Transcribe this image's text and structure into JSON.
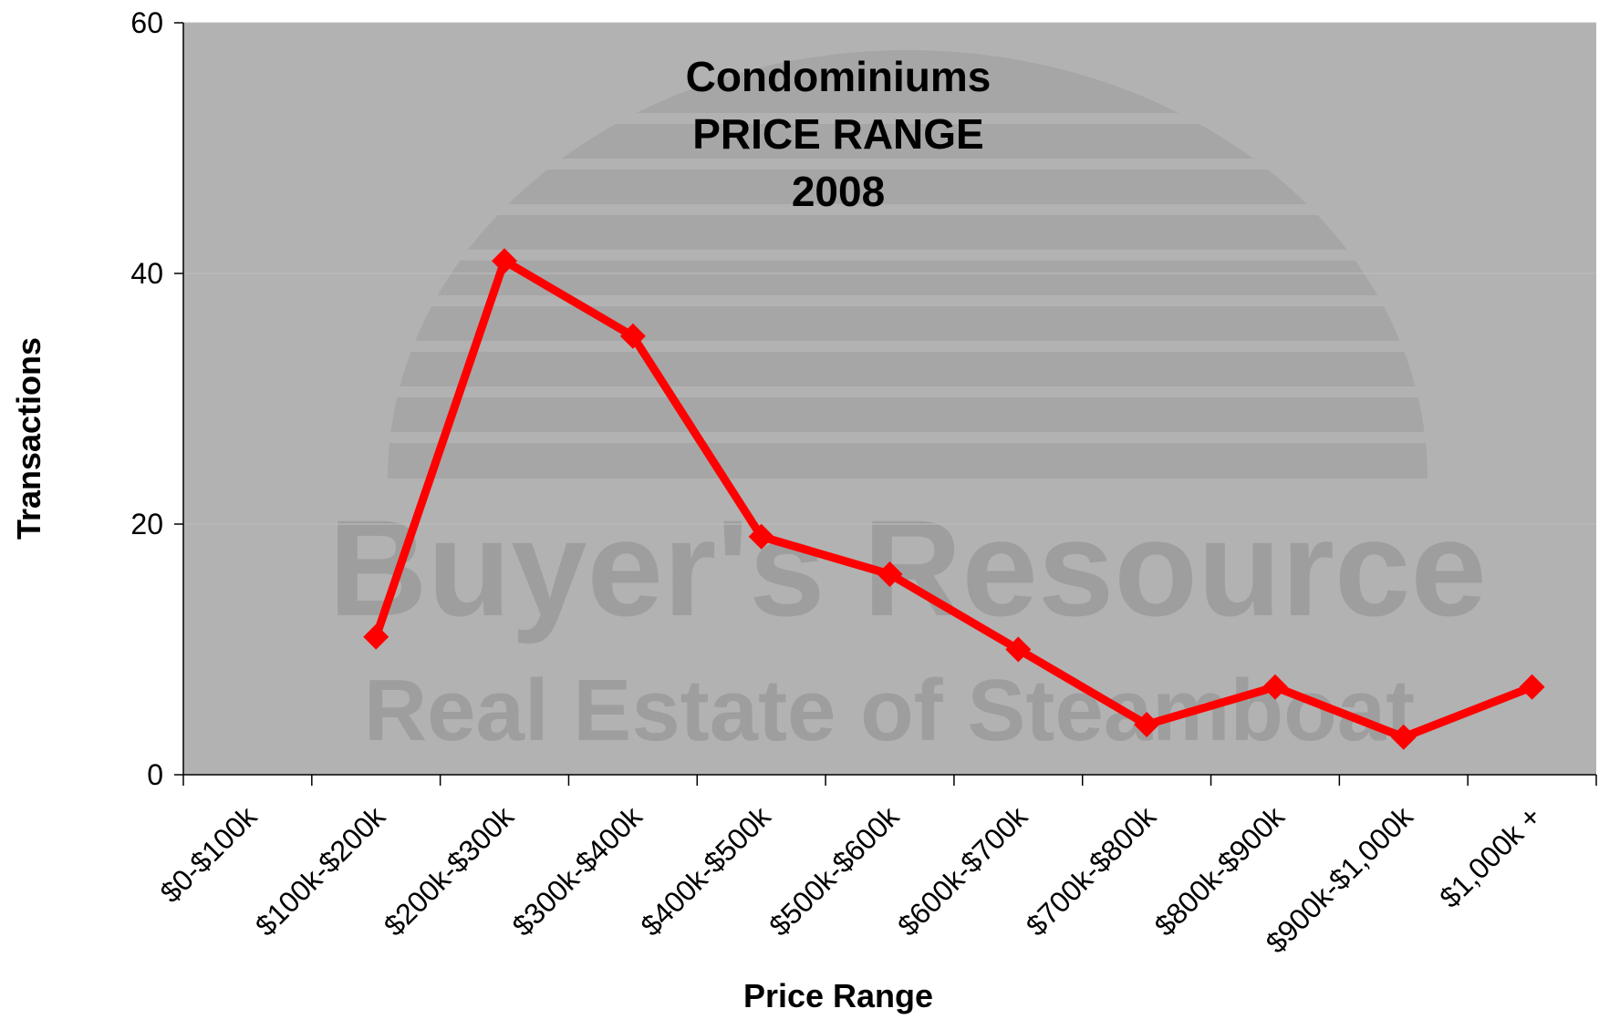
{
  "chart_data": {
    "type": "line",
    "title": [
      "Condominiums",
      "PRICE RANGE",
      "2008"
    ],
    "x_label": "Price Range",
    "y_label": "Transactions",
    "watermark": [
      "Buyer's Resource",
      "Real Estate of Steamboat"
    ],
    "categories": [
      "$0-$100k",
      "$100k-$200k",
      "$200k-$300k",
      "$300k-$400k",
      "$400k-$500k",
      "$500k-$600k",
      "$600k-$700k",
      "$700k-$800k",
      "$800k-$900k",
      "$900k-$1,000k",
      "$1,000k +"
    ],
    "values": [
      null,
      11,
      41,
      35,
      19,
      16,
      10,
      4,
      7,
      3,
      7
    ],
    "color": "#ff0000",
    "ylim": [
      0,
      60
    ],
    "yticks": [
      0,
      20,
      40,
      60
    ],
    "grid": true
  }
}
